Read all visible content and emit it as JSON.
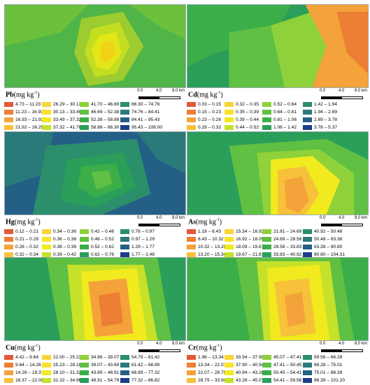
{
  "scale": {
    "ticks": [
      "0.0",
      "4.0",
      "8.0 km"
    ]
  },
  "panels": [
    {
      "id": "pb",
      "element": "Pb",
      "unit": "(mg kg",
      "unit_exp": "-1",
      "unit_close": ")",
      "map_colors": [
        "#4fb548",
        "#6bc13c",
        "#9ccc2f",
        "#c3de20",
        "#e3e718",
        "#f2d217"
      ],
      "legend": [
        {
          "label": "4.73 – 11.23",
          "color": "#e05a3a"
        },
        {
          "label": "11.23 – 16.93",
          "color": "#ec7f33"
        },
        {
          "label": "16.93 – 21.92",
          "color": "#f4a23a"
        },
        {
          "label": "21.92 – 26.29",
          "color": "#f7c13a"
        },
        {
          "label": "26.29 – 30.13",
          "color": "#f9d537"
        },
        {
          "label": "30.13 – 33.49",
          "color": "#fbe12c"
        },
        {
          "label": "33.49 – 37.32",
          "color": "#f0ea1e"
        },
        {
          "label": "37.32 – 41.70",
          "color": "#c6e12a"
        },
        {
          "label": "41.70 – 46.69",
          "color": "#8ed13a"
        },
        {
          "label": "46.69 – 52.38",
          "color": "#5fc043"
        },
        {
          "label": "52.38 – 58.88",
          "color": "#3cae49"
        },
        {
          "label": "58.88 – 66.30",
          "color": "#2b9e5a"
        },
        {
          "label": "66.30 – 74.76",
          "color": "#2a8f6a"
        },
        {
          "label": "74.76 – 84.41",
          "color": "#297a79"
        },
        {
          "label": "84.41 – 95.43",
          "color": "#245f86"
        },
        {
          "label": "95.43 – 108.00",
          "color": "#1c3d8c"
        }
      ]
    },
    {
      "id": "cd",
      "element": "Cd",
      "unit": "(mg kg",
      "unit_exp": "-1",
      "unit_close": ")",
      "map_colors": [
        "#2b9e5a",
        "#3cae49",
        "#5fc043",
        "#8ed13a",
        "#f4a23a",
        "#ec7f33"
      ],
      "legend": [
        {
          "label": "0.03 – 0.15",
          "color": "#e05a3a"
        },
        {
          "label": "0.15 – 0.23",
          "color": "#ec7f33"
        },
        {
          "label": "0.23 – 0.28",
          "color": "#f4a23a"
        },
        {
          "label": "0.28 – 0.32",
          "color": "#f7c13a"
        },
        {
          "label": "0.32 – 0.35",
          "color": "#f9d537"
        },
        {
          "label": "0.35 – 0.39",
          "color": "#fbe12c"
        },
        {
          "label": "0.39 – 0.44",
          "color": "#f0ea1e"
        },
        {
          "label": "0.44 – 0.52",
          "color": "#c6e12a"
        },
        {
          "label": "0.52 – 0.64",
          "color": "#8ed13a"
        },
        {
          "label": "0.64 – 0.81",
          "color": "#5fc043"
        },
        {
          "label": "0.81 – 1.06",
          "color": "#3cae49"
        },
        {
          "label": "1.06 – 1.42",
          "color": "#2b9e5a"
        },
        {
          "label": "1.42 – 1.94",
          "color": "#2a8f6a"
        },
        {
          "label": "1.94 – 2.69",
          "color": "#297a79"
        },
        {
          "label": "2.69 – 3.78",
          "color": "#245f86"
        },
        {
          "label": "3.78 – 5.37",
          "color": "#1c3d8c"
        }
      ]
    },
    {
      "id": "hg",
      "element": "Hg",
      "unit": "(mg kg",
      "unit_exp": "-1",
      "unit_close": ")",
      "map_colors": [
        "#245f86",
        "#297a79",
        "#2a8f6a",
        "#2b9e5a",
        "#3cae49",
        "#5fc043"
      ],
      "legend": [
        {
          "label": "0.12 – 0.21",
          "color": "#e05a3a"
        },
        {
          "label": "0.21 – 0.28",
          "color": "#ec7f33"
        },
        {
          "label": "0.28 – 0.32",
          "color": "#f4a23a"
        },
        {
          "label": "0.32 – 0.34",
          "color": "#f7c13a"
        },
        {
          "label": "0.34 – 0.36",
          "color": "#f9d537"
        },
        {
          "label": "0.36 – 0.38",
          "color": "#fbe12c"
        },
        {
          "label": "0.38 – 0.39",
          "color": "#f0ea1e"
        },
        {
          "label": "0.39 – 0.42",
          "color": "#c6e12a"
        },
        {
          "label": "0.42 – 0.46",
          "color": "#8ed13a"
        },
        {
          "label": "0.46 – 0.52",
          "color": "#5fc043"
        },
        {
          "label": "0.52 – 0.62",
          "color": "#3cae49"
        },
        {
          "label": "0.62 – 0.76",
          "color": "#2b9e5a"
        },
        {
          "label": "0.76 – 0.97",
          "color": "#2a8f6a"
        },
        {
          "label": "0.97 – 1.29",
          "color": "#297a79"
        },
        {
          "label": "1.29 – 1.77",
          "color": "#245f86"
        },
        {
          "label": "1.77 – 2.48",
          "color": "#1c3d8c"
        }
      ]
    },
    {
      "id": "as",
      "element": "As",
      "unit": "(mg kg",
      "unit_exp": "-1",
      "unit_close": ")",
      "map_colors": [
        "#2b9e5a",
        "#5fc043",
        "#8ed13a",
        "#f0ea1e",
        "#f7c13a",
        "#f4a23a"
      ],
      "legend": [
        {
          "label": "1.18 – 6.43",
          "color": "#e05a3a"
        },
        {
          "label": "6.43 – 10.32",
          "color": "#ec7f33"
        },
        {
          "label": "10.32 – 13.20",
          "color": "#f4a23a"
        },
        {
          "label": "13.20 – 15.34",
          "color": "#f7c13a"
        },
        {
          "label": "15.34 – 16.92",
          "color": "#f9d537"
        },
        {
          "label": "16.92 – 18.09",
          "color": "#fbe12c"
        },
        {
          "label": "18.09 – 19.67",
          "color": "#f0ea1e"
        },
        {
          "label": "19.67 – 21.81",
          "color": "#c6e12a"
        },
        {
          "label": "21.81 – 24.69",
          "color": "#8ed13a"
        },
        {
          "label": "24.69 – 28.58",
          "color": "#5fc043"
        },
        {
          "label": "28.58 – 33.83",
          "color": "#3cae49"
        },
        {
          "label": "33.83 – 40.92",
          "color": "#2b9e5a"
        },
        {
          "label": "40.92 – 50.48",
          "color": "#2a8f6a"
        },
        {
          "label": "50.48 – 63.38",
          "color": "#297a79"
        },
        {
          "label": "63.38 – 80.80",
          "color": "#245f86"
        },
        {
          "label": "80.80 – 104.31",
          "color": "#1c3d8c"
        }
      ]
    },
    {
      "id": "cu",
      "element": "Cu",
      "unit": "(mg kg",
      "unit_exp": "-1",
      "unit_close": ")",
      "map_colors": [
        "#2b9e5a",
        "#5fc043",
        "#c6e12a",
        "#f0ea1e",
        "#f4a23a",
        "#ec7f33"
      ],
      "legend": [
        {
          "label": "4.42 – 9.64",
          "color": "#e05a3a"
        },
        {
          "label": "9.64 – 14.26",
          "color": "#ec7f33"
        },
        {
          "label": "14.26 – 18.37",
          "color": "#f4a23a"
        },
        {
          "label": "18.37 – 22.00",
          "color": "#f7c13a"
        },
        {
          "label": "22.00 – 25.23",
          "color": "#f9d537"
        },
        {
          "label": "25.23 – 28.10",
          "color": "#fbe12c"
        },
        {
          "label": "28.10 – 31.32",
          "color": "#f0ea1e"
        },
        {
          "label": "31.32 – 34.96",
          "color": "#c6e12a"
        },
        {
          "label": "34.96 – 39.07",
          "color": "#8ed13a"
        },
        {
          "label": "39.07 – 43.69",
          "color": "#5fc043"
        },
        {
          "label": "43.69 – 48.91",
          "color": "#3cae49"
        },
        {
          "label": "48.91 – 54.79",
          "color": "#2b9e5a"
        },
        {
          "label": "54.79 – 61.42",
          "color": "#2a8f6a"
        },
        {
          "label": "61.42 – 68.89",
          "color": "#297a79"
        },
        {
          "label": "68.89 – 77.32",
          "color": "#245f86"
        },
        {
          "label": "77.32 – 86.82",
          "color": "#1c3d8c"
        }
      ]
    },
    {
      "id": "cr",
      "element": "Cr",
      "unit": "(mg kg",
      "unit_exp": "-1",
      "unit_close": ")",
      "map_colors": [
        "#3cae49",
        "#5fc043",
        "#c6e12a",
        "#f0ea1e",
        "#f7c13a",
        "#f4a23a"
      ],
      "legend": [
        {
          "label": "1.96 – 13.34",
          "color": "#e05a3a"
        },
        {
          "label": "13.34 – 22.07",
          "color": "#ec7f33"
        },
        {
          "label": "22.07 – 28.79",
          "color": "#f4a23a"
        },
        {
          "label": "28.79 – 33.94",
          "color": "#f7c13a"
        },
        {
          "label": "33.94 – 37.90",
          "color": "#f9d537"
        },
        {
          "label": "37.90 – 40.94",
          "color": "#fbe12c"
        },
        {
          "label": "40.94 – 43.28",
          "color": "#f0ea1e"
        },
        {
          "label": "43.28 – 45.07",
          "color": "#c6e12a"
        },
        {
          "label": "45.07 – 47.41",
          "color": "#8ed13a"
        },
        {
          "label": "47.41 – 50.45",
          "color": "#5fc043"
        },
        {
          "label": "50.45 – 54.41",
          "color": "#3cae49"
        },
        {
          "label": "54.41 – 59.56",
          "color": "#2b9e5a"
        },
        {
          "label": "59.56 – 66.28",
          "color": "#2a8f6a"
        },
        {
          "label": "66.28 – 75.01",
          "color": "#297a79"
        },
        {
          "label": "75.01 – 86.39",
          "color": "#245f86"
        },
        {
          "label": "86.39 – 101.20",
          "color": "#1c3d8c"
        }
      ]
    }
  ]
}
